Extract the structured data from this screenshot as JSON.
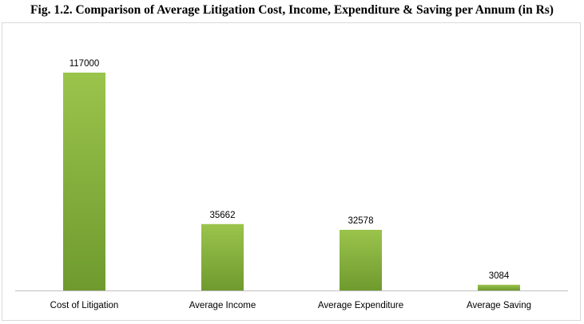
{
  "chart_data": {
    "type": "bar",
    "title": "Fig. 1.2. Comparison of Average Litigation Cost, Income, Expenditure & Saving per Annum (in Rs)",
    "categories": [
      "Cost of Litigation",
      "Average Income",
      "Average Expenditure",
      "Average Saving"
    ],
    "values": [
      117000,
      35662,
      32578,
      3084
    ],
    "data_labels": [
      "117000",
      "35662",
      "32578",
      "3084"
    ],
    "ylim": [
      0,
      117000
    ],
    "grid": false,
    "legend": "none",
    "colors": {
      "bar_top": "#9bc44c",
      "bar_bottom": "#6f9a2e",
      "axis": "#bfbfbf",
      "frame": "#d9d9d9"
    }
  }
}
